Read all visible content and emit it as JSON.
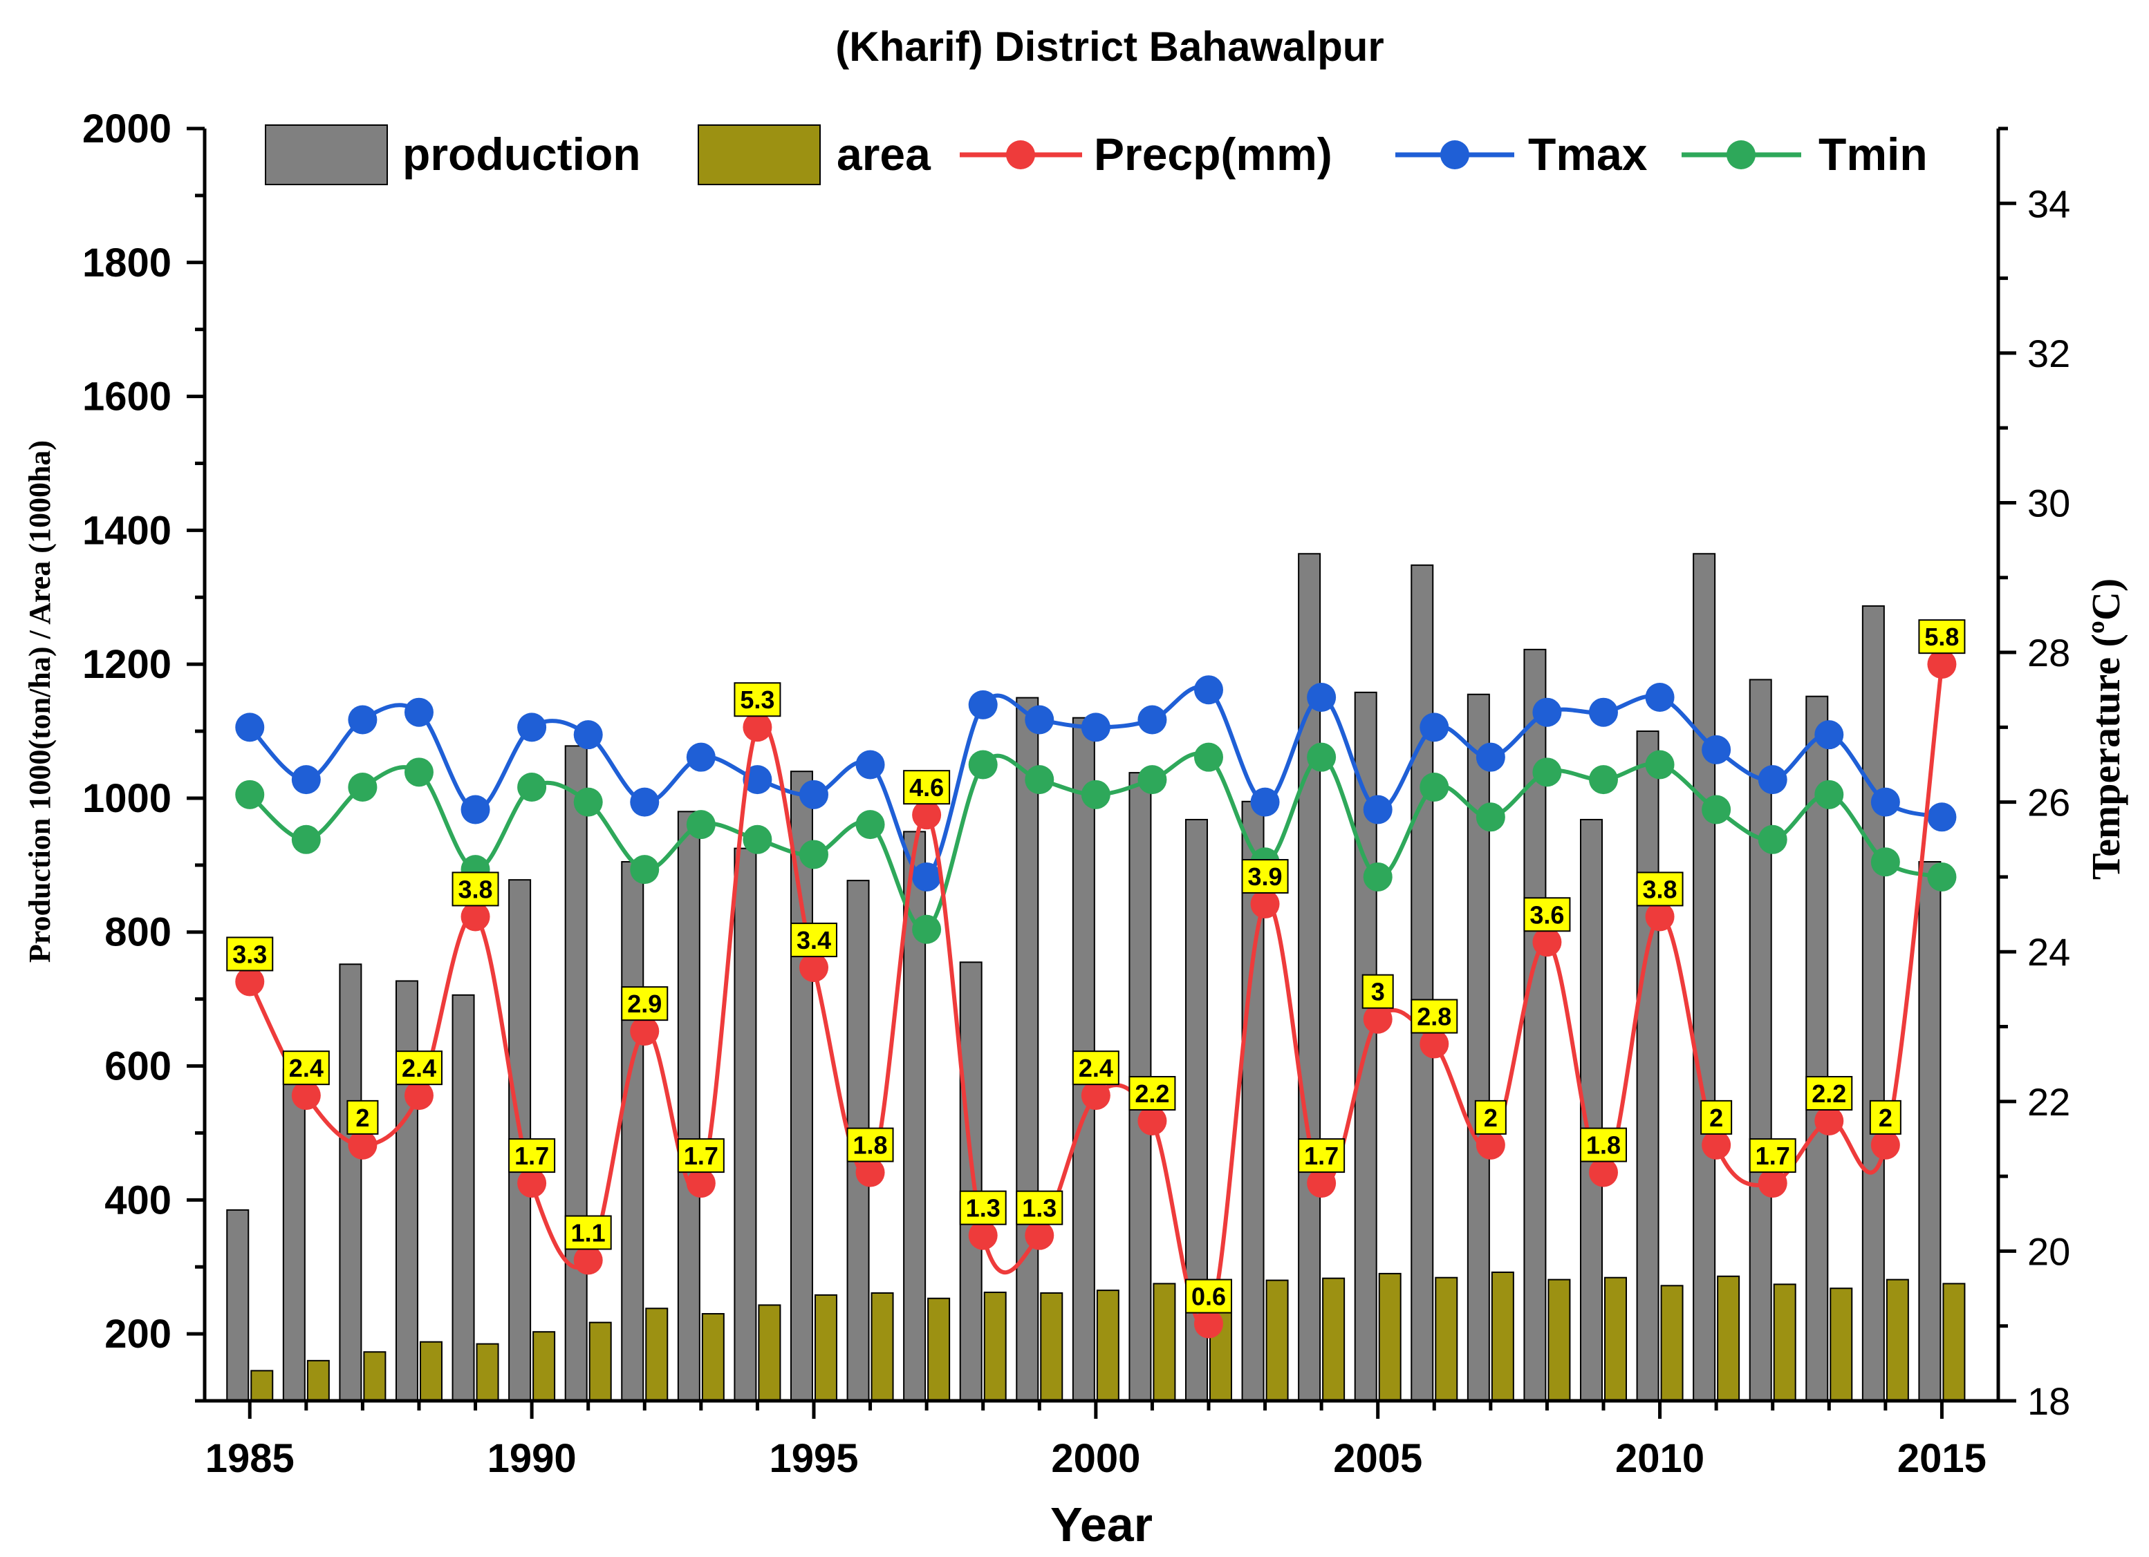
{
  "chart_data": {
    "type": "bar+line",
    "title": "(Kharif) District Bahawalpur",
    "xlabel": "Year",
    "ylabel_left": "Production 1000(ton/ha) / Area (1000ha)",
    "ylabel_right": "Temperature (ºC)",
    "xlim": [
      1984.2,
      2016.0
    ],
    "ylim_left": [
      100,
      2000
    ],
    "ylim_right": [
      18,
      35
    ],
    "x_ticks": [
      1985,
      1990,
      1995,
      2000,
      2005,
      2010,
      2015
    ],
    "y_left_ticks": [
      200,
      400,
      600,
      800,
      1000,
      1200,
      1400,
      1600,
      1800,
      2000
    ],
    "y_right_ticks": [
      18,
      20,
      22,
      24,
      26,
      28,
      30,
      32,
      34
    ],
    "legend_position": "top",
    "years": [
      1985,
      1986,
      1987,
      1988,
      1989,
      1990,
      1991,
      1992,
      1993,
      1994,
      1995,
      1996,
      1997,
      1998,
      1999,
      2000,
      2001,
      2002,
      2003,
      2004,
      2005,
      2006,
      2007,
      2008,
      2009,
      2010,
      2011,
      2012,
      2013,
      2014,
      2015
    ],
    "series": [
      {
        "name": "production",
        "kind": "bar",
        "axis": "left",
        "color": "#808080",
        "values": [
          385,
          595,
          752,
          727,
          706,
          878,
          1078,
          905,
          980,
          925,
          1040,
          877,
          950,
          755,
          1150,
          1120,
          1038,
          968,
          995,
          1365,
          1158,
          1348,
          1155,
          1222,
          968,
          1100,
          1365,
          1177,
          1152,
          1287,
          905
        ]
      },
      {
        "name": "area",
        "kind": "bar",
        "axis": "left",
        "color": "#9c9112",
        "values": [
          145,
          160,
          173,
          188,
          185,
          203,
          217,
          238,
          230,
          243,
          258,
          261,
          253,
          262,
          261,
          265,
          275,
          270,
          280,
          283,
          290,
          284,
          292,
          281,
          284,
          272,
          286,
          274,
          268,
          281,
          275
        ]
      },
      {
        "name": "Precp(mm)",
        "kind": "line",
        "axis": "left",
        "color": "#ee3b3b",
        "values": [
          726,
          556,
          482,
          556,
          823,
          425,
          310,
          652,
          425,
          1106,
          747,
          441,
          975,
          347,
          347,
          556,
          518,
          215,
          842,
          425,
          670,
          633,
          482,
          785,
          441,
          823,
          482,
          425,
          518,
          482,
          1200
        ],
        "labels": [
          "3.3",
          "2.4",
          "2",
          "2.4",
          "3.8",
          "1.7",
          "1.1",
          "2.9",
          "1.7",
          "5.3",
          "3.4",
          "1.8",
          "4.6",
          "1.3",
          "1.3",
          "2.4",
          "2.2",
          "0.6",
          "3.9",
          "1.7",
          "3",
          "2.8",
          "2",
          "3.6",
          "1.8",
          "3.8",
          "2",
          "1.7",
          "2.2",
          "2",
          "5.8"
        ]
      },
      {
        "name": "Tmax",
        "kind": "line",
        "axis": "right",
        "color": "#1f5fd6",
        "values": [
          27.0,
          26.3,
          27.1,
          27.2,
          25.9,
          27.0,
          26.9,
          26.0,
          26.6,
          26.3,
          26.1,
          26.5,
          25.0,
          27.3,
          27.1,
          27.0,
          27.1,
          27.5,
          26.0,
          27.4,
          25.9,
          27.0,
          26.6,
          27.2,
          27.2,
          27.4,
          26.7,
          26.3,
          26.9,
          26.0,
          25.8
        ]
      },
      {
        "name": "Tmin",
        "kind": "line",
        "axis": "right",
        "color": "#2ea85a",
        "values": [
          26.1,
          25.5,
          26.2,
          26.4,
          25.1,
          26.2,
          26.0,
          25.1,
          25.7,
          25.5,
          25.3,
          25.7,
          24.3,
          26.5,
          26.3,
          26.1,
          26.3,
          26.6,
          25.2,
          26.6,
          25.0,
          26.2,
          25.8,
          26.4,
          26.3,
          26.5,
          25.9,
          25.5,
          26.1,
          25.2,
          25.0
        ]
      }
    ]
  }
}
